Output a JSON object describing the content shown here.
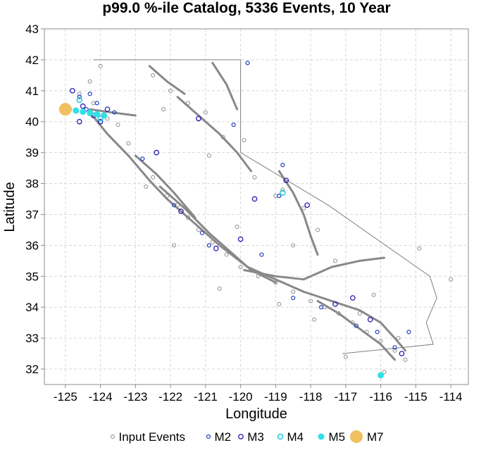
{
  "chart_data": {
    "type": "scatter",
    "title": "p99.0 %-ile Catalog, 5336 Events, 10 Year",
    "xlabel": "Longitude",
    "ylabel": "Latitude",
    "xlim": [
      -125.6,
      -113.5
    ],
    "ylim": [
      31.5,
      43
    ],
    "x_ticks": [
      -125,
      -124,
      -123,
      -122,
      -121,
      -120,
      -119,
      -118,
      -117,
      -116,
      -115,
      -114
    ],
    "y_ticks": [
      32,
      33,
      34,
      35,
      36,
      37,
      38,
      39,
      40,
      41,
      42,
      43
    ],
    "grid": true,
    "legend_position": "bottom",
    "colors": {
      "fault_line": "#888888",
      "input_events": "#8c8c8c",
      "m2": "#1f3fbf",
      "m3": "#2a1ab0",
      "m4": "#1ec8e0",
      "m5": "#30e0e8",
      "m7": "#f0c060",
      "border": "#808080"
    },
    "series": [
      {
        "name": "Input Events",
        "marker": "open-circle-gray",
        "points": [
          [
            -124.6,
            40.9
          ],
          [
            -124.2,
            40.6
          ],
          [
            -123.8,
            40.1
          ],
          [
            -123.2,
            39.3
          ],
          [
            -122.8,
            38.8
          ],
          [
            -122.5,
            38.2
          ],
          [
            -122.1,
            37.6
          ],
          [
            -121.8,
            37.3
          ],
          [
            -121.5,
            36.9
          ],
          [
            -121.2,
            36.5
          ],
          [
            -120.8,
            36.1
          ],
          [
            -120.4,
            35.7
          ],
          [
            -120.0,
            35.3
          ],
          [
            -119.5,
            35.0
          ],
          [
            -119.0,
            34.8
          ],
          [
            -118.5,
            34.5
          ],
          [
            -118.0,
            34.2
          ],
          [
            -117.6,
            34.0
          ],
          [
            -117.2,
            33.8
          ],
          [
            -116.8,
            33.5
          ],
          [
            -116.4,
            33.2
          ],
          [
            -116.0,
            32.9
          ],
          [
            -115.6,
            32.6
          ],
          [
            -115.3,
            32.3
          ],
          [
            -119.0,
            37.6
          ],
          [
            -118.8,
            37.8
          ],
          [
            -118.2,
            37.2
          ],
          [
            -117.8,
            36.5
          ],
          [
            -119.6,
            38.2
          ],
          [
            -120.5,
            39.5
          ],
          [
            -121.0,
            40.3
          ],
          [
            -121.5,
            40.6
          ],
          [
            -122.0,
            41.0
          ],
          [
            -122.5,
            41.5
          ],
          [
            -124.0,
            41.8
          ],
          [
            -124.3,
            41.3
          ],
          [
            -122.2,
            40.4
          ],
          [
            -120.9,
            38.9
          ],
          [
            -119.9,
            39.4
          ],
          [
            -118.5,
            36.0
          ],
          [
            -117.3,
            35.5
          ],
          [
            -116.2,
            34.4
          ],
          [
            -115.5,
            33.0
          ],
          [
            -116.6,
            33.8
          ],
          [
            -120.6,
            34.6
          ],
          [
            -121.9,
            36.0
          ],
          [
            -122.7,
            37.9
          ],
          [
            -123.5,
            39.9
          ],
          [
            -119.8,
            41.9
          ],
          [
            -120.1,
            36.6
          ],
          [
            -117.0,
            32.4
          ],
          [
            -115.9,
            31.9
          ],
          [
            -118.9,
            34.1
          ],
          [
            -117.9,
            33.6
          ],
          [
            -114.0,
            34.9
          ],
          [
            -114.9,
            35.9
          ]
        ]
      },
      {
        "name": "M2",
        "marker": "open-circle-blue-small",
        "points": [
          [
            -124.6,
            40.8
          ],
          [
            -124.4,
            40.4
          ],
          [
            -124.1,
            40.6
          ],
          [
            -124.3,
            40.9
          ],
          [
            -123.6,
            40.3
          ],
          [
            -121.9,
            37.3
          ],
          [
            -121.1,
            36.4
          ],
          [
            -120.9,
            36.0
          ],
          [
            -119.4,
            35.7
          ],
          [
            -118.9,
            37.6
          ],
          [
            -118.8,
            38.6
          ],
          [
            -117.7,
            34.0
          ],
          [
            -116.7,
            33.4
          ],
          [
            -116.1,
            33.2
          ],
          [
            -115.6,
            32.7
          ],
          [
            -119.8,
            41.9
          ],
          [
            -120.2,
            39.9
          ],
          [
            -122.8,
            38.8
          ],
          [
            -118.5,
            34.3
          ],
          [
            -115.2,
            33.2
          ]
        ]
      },
      {
        "name": "M3",
        "marker": "open-circle-navy",
        "points": [
          [
            -124.8,
            41.0
          ],
          [
            -124.5,
            40.5
          ],
          [
            -124.2,
            40.2
          ],
          [
            -124.0,
            40.0
          ],
          [
            -123.8,
            40.4
          ],
          [
            -124.6,
            40.0
          ],
          [
            -121.7,
            37.1
          ],
          [
            -120.7,
            35.9
          ],
          [
            -119.6,
            37.5
          ],
          [
            -118.7,
            38.1
          ],
          [
            -118.1,
            37.3
          ],
          [
            -116.8,
            34.3
          ],
          [
            -116.3,
            33.6
          ],
          [
            -115.4,
            32.5
          ],
          [
            -120.0,
            36.2
          ],
          [
            -117.3,
            34.1
          ],
          [
            -121.2,
            40.1
          ],
          [
            -122.4,
            39.0
          ]
        ]
      },
      {
        "name": "M4",
        "marker": "open-circle-cyan",
        "points": [
          [
            -124.6,
            40.7
          ],
          [
            -124.3,
            40.3
          ],
          [
            -124.0,
            40.1
          ],
          [
            -116.0,
            31.8
          ],
          [
            -118.8,
            37.7
          ]
        ]
      },
      {
        "name": "M5",
        "marker": "filled-circle-cyan",
        "points": [
          [
            -124.9,
            40.4
          ],
          [
            -124.7,
            40.36
          ],
          [
            -124.5,
            40.32
          ],
          [
            -124.3,
            40.28
          ],
          [
            -124.1,
            40.24
          ],
          [
            -123.9,
            40.2
          ],
          [
            -116.0,
            31.8
          ]
        ]
      },
      {
        "name": "M7",
        "marker": "filled-circle-gold",
        "points": [
          [
            -125.0,
            40.4
          ]
        ]
      }
    ],
    "legend": [
      {
        "label": "Input Events",
        "key": "input_events"
      },
      {
        "label": "M2",
        "key": "m2"
      },
      {
        "label": "M3",
        "key": "m3"
      },
      {
        "label": "M4",
        "key": "m4"
      },
      {
        "label": "M5",
        "key": "m5"
      },
      {
        "label": "M7",
        "key": "m7"
      }
    ],
    "faults": [
      [
        [
          -124.3,
          40.3
        ],
        [
          -123.8,
          39.6
        ],
        [
          -123.2,
          38.9
        ],
        [
          -122.6,
          38.1
        ],
        [
          -122.1,
          37.5
        ],
        [
          -121.4,
          36.8
        ],
        [
          -120.6,
          36.0
        ],
        [
          -119.8,
          35.3
        ],
        [
          -119.0,
          34.9
        ],
        [
          -118.2,
          34.5
        ],
        [
          -117.4,
          34.2
        ],
        [
          -116.6,
          33.9
        ],
        [
          -116.0,
          33.5
        ],
        [
          -115.6,
          33.0
        ],
        [
          -115.3,
          32.6
        ]
      ],
      [
        [
          -122.3,
          37.9
        ],
        [
          -121.6,
          37.2
        ],
        [
          -120.9,
          36.4
        ],
        [
          -120.3,
          35.8
        ],
        [
          -119.7,
          35.2
        ],
        [
          -119.0,
          34.8
        ]
      ],
      [
        [
          -123.0,
          38.9
        ],
        [
          -122.4,
          38.3
        ],
        [
          -121.9,
          37.7
        ],
        [
          -121.3,
          36.9
        ]
      ],
      [
        [
          -119.9,
          35.2
        ],
        [
          -119.0,
          35.0
        ],
        [
          -118.2,
          34.9
        ],
        [
          -117.4,
          35.3
        ],
        [
          -116.6,
          35.5
        ],
        [
          -115.9,
          35.6
        ]
      ],
      [
        [
          -117.8,
          34.2
        ],
        [
          -117.2,
          33.8
        ],
        [
          -116.6,
          33.3
        ],
        [
          -116.0,
          32.8
        ],
        [
          -115.6,
          32.3
        ]
      ],
      [
        [
          -118.9,
          38.4
        ],
        [
          -118.5,
          37.7
        ],
        [
          -118.2,
          37.0
        ],
        [
          -118.0,
          36.3
        ],
        [
          -117.8,
          35.7
        ]
      ],
      [
        [
          -121.8,
          40.8
        ],
        [
          -121.2,
          40.2
        ],
        [
          -120.6,
          39.6
        ],
        [
          -120.1,
          39.0
        ],
        [
          -119.7,
          38.4
        ]
      ],
      [
        [
          -124.3,
          40.4
        ],
        [
          -123.7,
          40.3
        ],
        [
          -123.0,
          40.2
        ]
      ],
      [
        [
          -122.6,
          41.8
        ],
        [
          -122.1,
          41.3
        ],
        [
          -121.6,
          40.9
        ]
      ],
      [
        [
          -120.8,
          41.9
        ],
        [
          -120.4,
          41.2
        ],
        [
          -120.1,
          40.4
        ]
      ]
    ],
    "state_border": [
      [
        -124.2,
        42.0
      ],
      [
        -120.0,
        42.0
      ],
      [
        -120.0,
        39.0
      ],
      [
        -117.5,
        37.3
      ],
      [
        -114.6,
        35.0
      ],
      [
        -114.4,
        34.3
      ],
      [
        -114.7,
        33.5
      ],
      [
        -114.5,
        32.8
      ],
      [
        -117.1,
        32.5
      ]
    ]
  }
}
